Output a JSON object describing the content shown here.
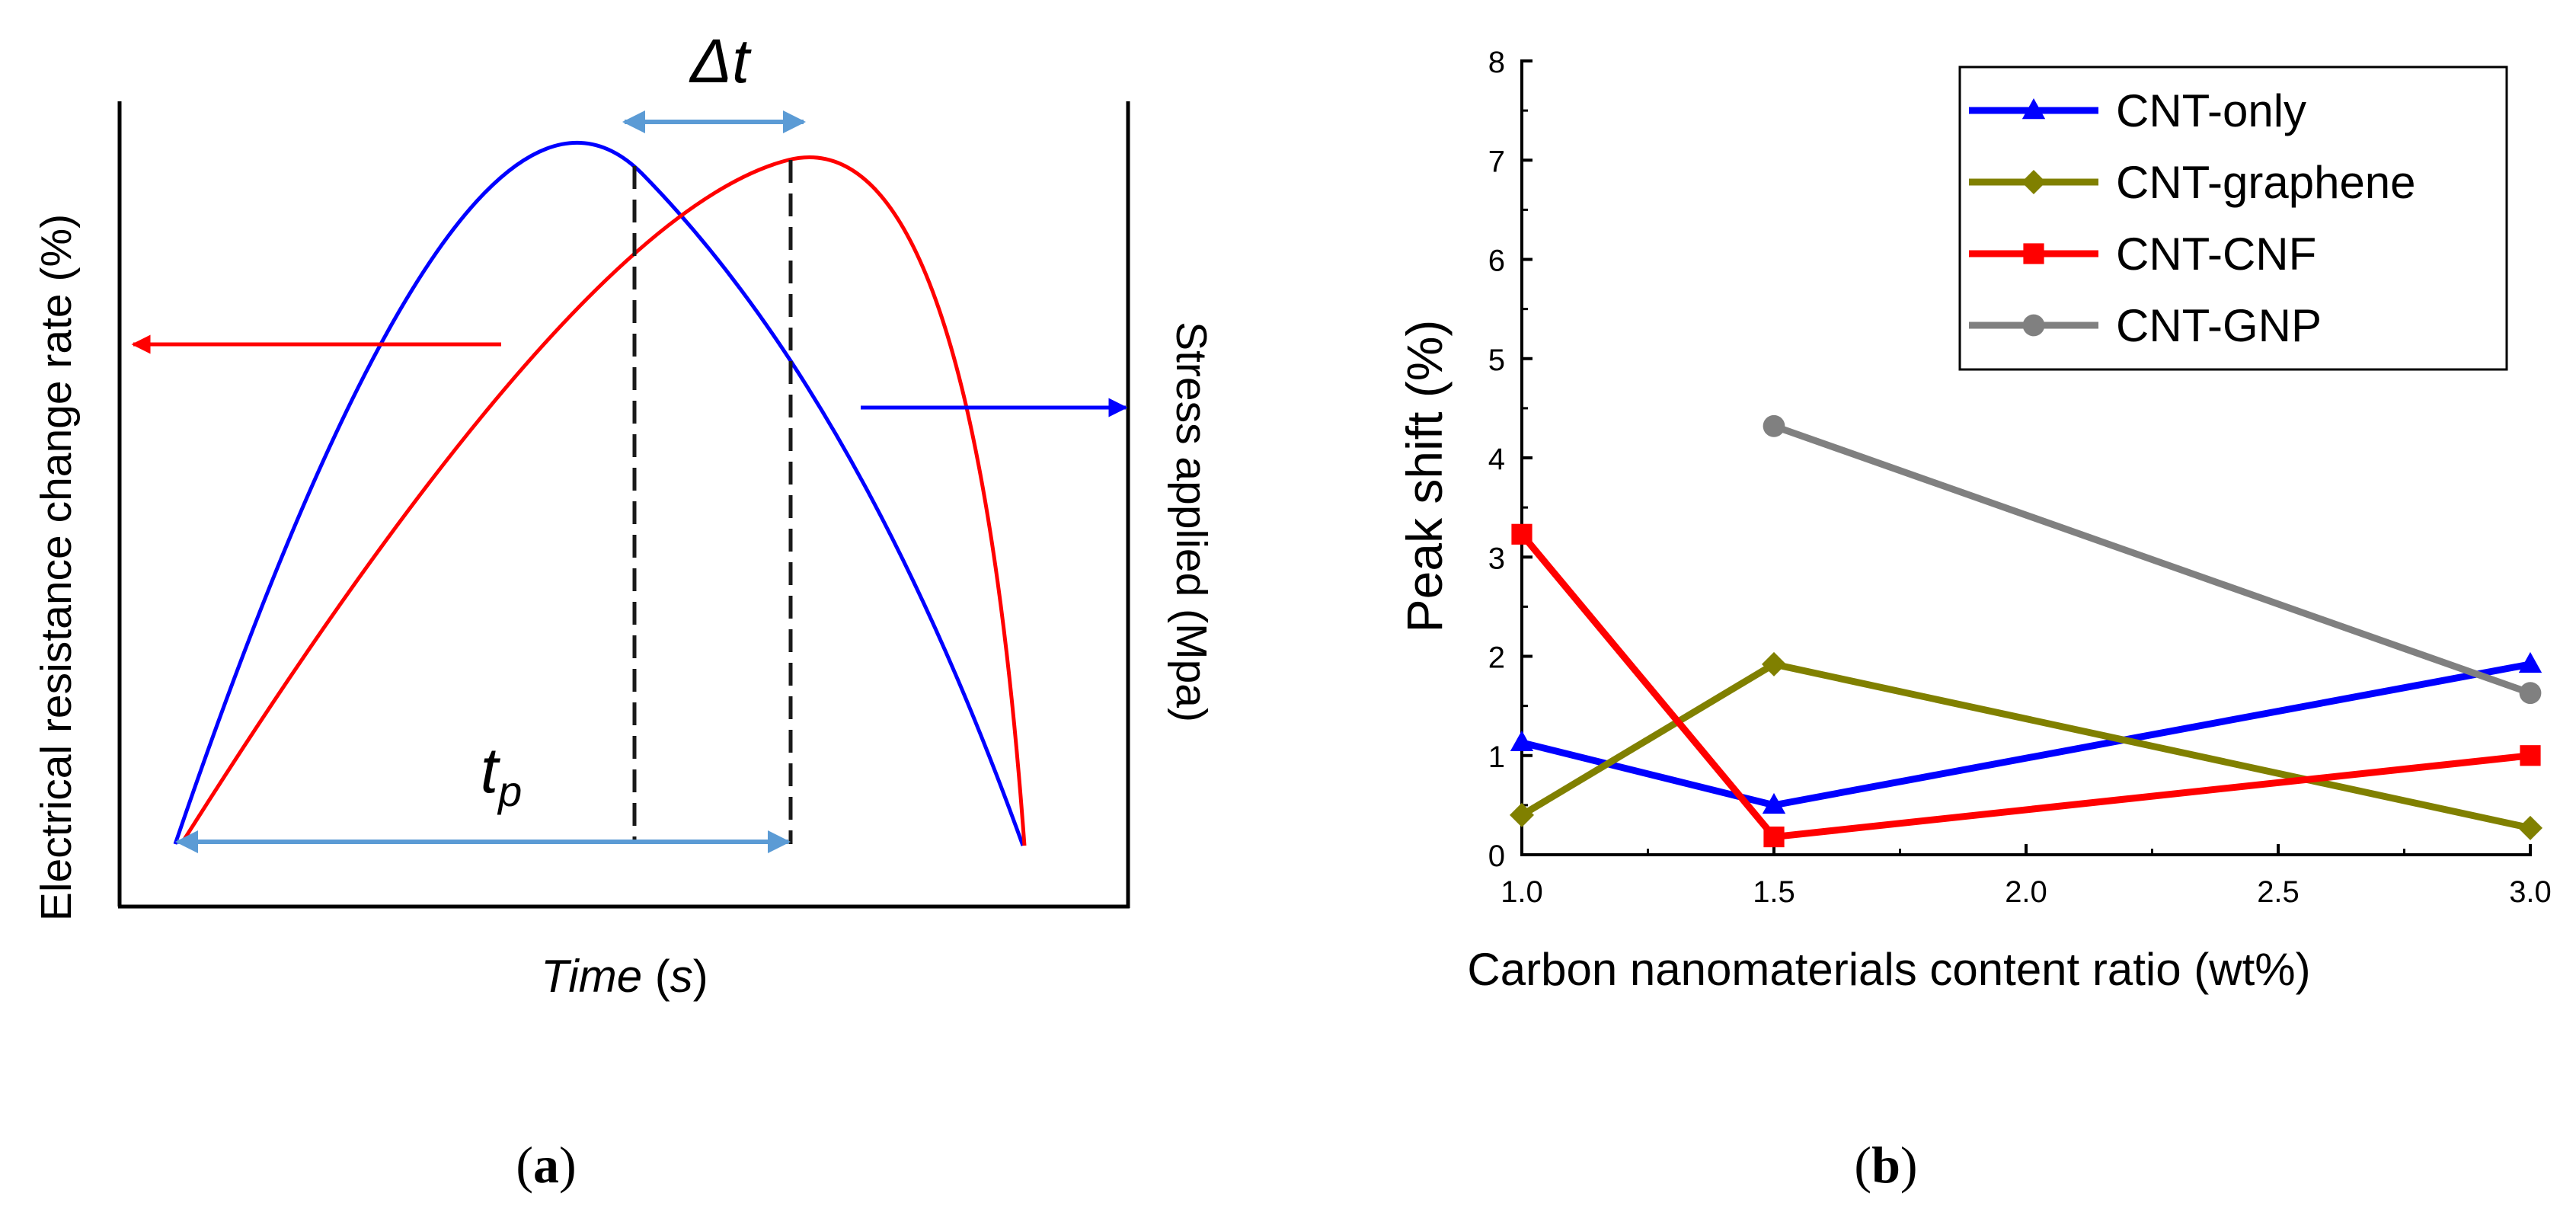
{
  "panel_a": {
    "caption_letter": "a",
    "caption_open": "(",
    "caption_close": ")",
    "xlabel_main": "Time",
    "xlabel_open": " (",
    "xlabel_unit": "s",
    "xlabel_close": ")",
    "ylabel_left": "Electrical resistance change rate (%)",
    "ylabel_right": "Stress applied (Mpa)",
    "delta_t_label": "Δt",
    "tp_main": "t",
    "tp_sub": "p",
    "colors": {
      "stress_curve": "#0000ff",
      "resistance_curve": "#ff0000",
      "annotation_arrow": "#5b9bd5",
      "axes": "#000000"
    }
  },
  "panel_b": {
    "caption_letter": "b",
    "caption_open": "(",
    "caption_close": ")"
  },
  "chart_data": {
    "type": "line",
    "title": "",
    "xlabel": "Carbon nanomaterials content ratio (wt%)",
    "ylabel": "Peak shift (%)",
    "xlim": [
      1.0,
      3.0
    ],
    "ylim": [
      0,
      8
    ],
    "xticks": [
      1.0,
      1.5,
      2.0,
      2.5,
      3.0
    ],
    "xtick_labels": [
      "1.0",
      "1.5",
      "2.0",
      "2.5",
      "3.0"
    ],
    "yticks": [
      0,
      1,
      2,
      3,
      4,
      5,
      6,
      7,
      8
    ],
    "ytick_labels": [
      "0",
      "1",
      "2",
      "3",
      "4",
      "5",
      "6",
      "7",
      "8"
    ],
    "grid": false,
    "legend_position": "top-right",
    "series": [
      {
        "name": "CNT-only",
        "color": "#0000ff",
        "marker": "triangle",
        "x": [
          1.0,
          1.5,
          3.0
        ],
        "y": [
          1.13,
          0.5,
          1.92
        ]
      },
      {
        "name": "CNT-graphene",
        "color": "#808000",
        "marker": "diamond",
        "x": [
          1.0,
          1.5,
          3.0
        ],
        "y": [
          0.4,
          1.92,
          0.27
        ]
      },
      {
        "name": "CNT-CNF",
        "color": "#ff0000",
        "marker": "square",
        "x": [
          1.0,
          1.5,
          3.0
        ],
        "y": [
          3.23,
          0.18,
          1.0
        ]
      },
      {
        "name": "CNT-GNP",
        "color": "#808080",
        "marker": "circle",
        "x": [
          1.5,
          3.0
        ],
        "y": [
          4.32,
          1.63
        ]
      }
    ]
  }
}
